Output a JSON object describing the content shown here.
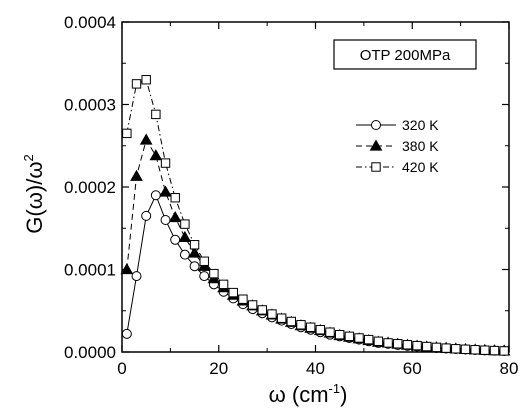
{
  "chart_data": {
    "type": "line",
    "title": "",
    "annotation": "OTP 200MPa",
    "xlabel": "ω (cm",
    "xlabel_sup": "-1",
    "xlabel_close": ")",
    "ylabel": "G(ω)/ω",
    "ylabel_sup": "2",
    "xlim": [
      0,
      80
    ],
    "ylim": [
      0,
      0.0004
    ],
    "x_ticks": [
      0,
      20,
      40,
      60,
      80
    ],
    "x_tick_labels": [
      "0",
      "20",
      "40",
      "60",
      "80"
    ],
    "y_ticks": [
      0,
      0.0001,
      0.0002,
      0.0003,
      0.0004
    ],
    "y_tick_labels": [
      "0.0000",
      "0.0001",
      "0.0002",
      "0.0003",
      "0.0004"
    ],
    "grid": false,
    "legend_position": "right",
    "series": [
      {
        "name": "320 K",
        "marker": "open-circle",
        "line_style": "solid",
        "x": [
          1,
          3,
          5,
          7,
          9,
          11,
          13,
          15,
          17,
          19,
          21,
          23,
          25,
          27,
          29,
          31,
          33,
          35,
          37,
          39,
          41,
          43,
          45,
          47,
          49,
          51,
          53,
          55,
          57,
          59,
          61,
          63,
          65,
          67,
          69,
          71,
          73,
          75,
          77,
          79
        ],
        "y": [
          2.2e-05,
          9.2e-05,
          0.000165,
          0.00019,
          0.00016,
          0.000136,
          0.000118,
          0.000104,
          9.2e-05,
          8.2e-05,
          7.3e-05,
          6.5e-05,
          5.8e-05,
          5.2e-05,
          4.7e-05,
          4.2e-05,
          3.8e-05,
          3.4e-05,
          3e-05,
          2.7e-05,
          2.4e-05,
          2.1e-05,
          1.9e-05,
          1.7e-05,
          1.5e-05,
          1.3e-05,
          1.1e-05,
          1e-05,
          8.5e-06,
          7.5e-06,
          6.5e-06,
          5.5e-06,
          4.8e-06,
          4.2e-06,
          3.6e-06,
          3e-06,
          2.5e-06,
          2e-06,
          1.6e-06,
          1.2e-06
        ]
      },
      {
        "name": "380 K",
        "marker": "filled-triangle",
        "line_style": "dashed",
        "x": [
          1,
          3,
          5,
          7,
          9,
          11,
          13,
          15,
          17,
          19,
          21,
          23,
          25,
          27,
          29,
          31,
          33,
          35,
          37,
          39,
          41,
          43,
          45,
          47,
          49,
          51,
          53,
          55,
          57,
          59,
          61,
          63,
          65,
          67,
          69,
          71,
          73,
          75,
          77,
          79
        ],
        "y": [
          0.0001,
          0.000213,
          0.000257,
          0.000238,
          0.000194,
          0.000163,
          0.000139,
          0.00012,
          0.000104,
          8.9e-05,
          7.8e-05,
          6.9e-05,
          6.2e-05,
          5.6e-05,
          5e-05,
          4.5e-05,
          4e-05,
          3.6e-05,
          3.2e-05,
          2.9e-05,
          2.6e-05,
          2.3e-05,
          2e-05,
          1.8e-05,
          1.6e-05,
          1.4e-05,
          1.2e-05,
          1.1e-05,
          9.5e-06,
          8.3e-06,
          7.2e-06,
          6.2e-06,
          5.3e-06,
          4.5e-06,
          3.8e-06,
          3.2e-06,
          2.6e-06,
          2.1e-06,
          1.7e-06,
          1.3e-06
        ]
      },
      {
        "name": "420 K",
        "marker": "open-square",
        "line_style": "dash-dot",
        "x": [
          1,
          3,
          5,
          7,
          9,
          11,
          13,
          15,
          17,
          19,
          21,
          23,
          25,
          27,
          29,
          31,
          33,
          35,
          37,
          39,
          41,
          43,
          45,
          47,
          49,
          51,
          53,
          55,
          57,
          59,
          61,
          63,
          65,
          67,
          69,
          71,
          73,
          75,
          77,
          79
        ],
        "y": [
          0.000265,
          0.000325,
          0.00033,
          0.000288,
          0.000229,
          0.000187,
          0.000155,
          0.00013,
          0.00011,
          9.5e-05,
          8.2e-05,
          7.2e-05,
          6.4e-05,
          5.7e-05,
          5.1e-05,
          4.6e-05,
          4.1e-05,
          3.7e-05,
          3.3e-05,
          3e-05,
          2.7e-05,
          2.4e-05,
          2.1e-05,
          1.9e-05,
          1.7e-05,
          1.5e-05,
          1.3e-05,
          1.1e-05,
          1e-05,
          8.8e-06,
          7.7e-06,
          6.6e-06,
          5.6e-06,
          4.7e-06,
          3.9e-06,
          3.3e-06,
          2.7e-06,
          2.2e-06,
          1.7e-06,
          1.3e-06
        ]
      }
    ]
  }
}
